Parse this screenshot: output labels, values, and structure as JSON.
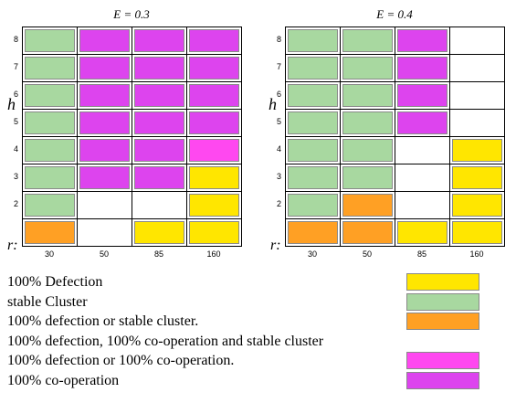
{
  "chart_data": [
    {
      "type": "heatmap",
      "title": "E = 0.3",
      "xlabel": "r:",
      "ylabel": "h",
      "x_categories": [
        "30",
        "50",
        "85",
        "160"
      ],
      "y_ticks": [
        "8",
        "7",
        "6",
        "5",
        "4",
        "3",
        "2"
      ],
      "rows": [
        [
          "stable_cluster",
          "cooperation",
          "cooperation",
          "cooperation"
        ],
        [
          "stable_cluster",
          "cooperation",
          "cooperation",
          "cooperation"
        ],
        [
          "stable_cluster",
          "cooperation",
          "cooperation",
          "cooperation"
        ],
        [
          "stable_cluster",
          "cooperation",
          "cooperation",
          "cooperation"
        ],
        [
          "stable_cluster",
          "cooperation",
          "cooperation",
          "defection_or_cooperation"
        ],
        [
          "stable_cluster",
          "cooperation",
          "cooperation",
          "defection"
        ],
        [
          "stable_cluster",
          "none",
          "none",
          "defection"
        ],
        [
          "defection_or_cluster",
          "none",
          "defection",
          "defection"
        ]
      ]
    },
    {
      "type": "heatmap",
      "title": "E = 0.4",
      "xlabel": "r:",
      "ylabel": "h",
      "x_categories": [
        "30",
        "50",
        "85",
        "160"
      ],
      "y_ticks": [
        "8",
        "7",
        "6",
        "5",
        "4",
        "3",
        "2"
      ],
      "rows": [
        [
          "stable_cluster",
          "stable_cluster",
          "cooperation",
          "none"
        ],
        [
          "stable_cluster",
          "stable_cluster",
          "cooperation",
          "none"
        ],
        [
          "stable_cluster",
          "stable_cluster",
          "cooperation",
          "none"
        ],
        [
          "stable_cluster",
          "stable_cluster",
          "cooperation",
          "none"
        ],
        [
          "stable_cluster",
          "stable_cluster",
          "none",
          "defection"
        ],
        [
          "stable_cluster",
          "stable_cluster",
          "none",
          "defection"
        ],
        [
          "stable_cluster",
          "defection_or_cluster",
          "none",
          "defection"
        ],
        [
          "defection_or_cluster",
          "defection_or_cluster",
          "defection",
          "defection"
        ]
      ]
    }
  ],
  "colors": {
    "defection": "#ffe600",
    "stable_cluster": "#a8d8a0",
    "defection_or_cluster": "#ffa024",
    "defection_or_cooperation": "#ff48f0",
    "cooperation": "#dd44ee",
    "none": "#ffffff"
  },
  "legend": [
    {
      "label": "100% Defection",
      "category": "defection"
    },
    {
      "label": "stable Cluster",
      "category": "stable_cluster"
    },
    {
      "label": "100% defection or stable cluster.",
      "category": "defection_or_cluster"
    },
    {
      "label": "100% defection, 100% co-operation and stable cluster",
      "category": "none"
    },
    {
      "label": "100% defection or 100% co-operation.",
      "category": "defection_or_cooperation"
    },
    {
      "label": "100% co-operation",
      "category": "cooperation"
    }
  ]
}
